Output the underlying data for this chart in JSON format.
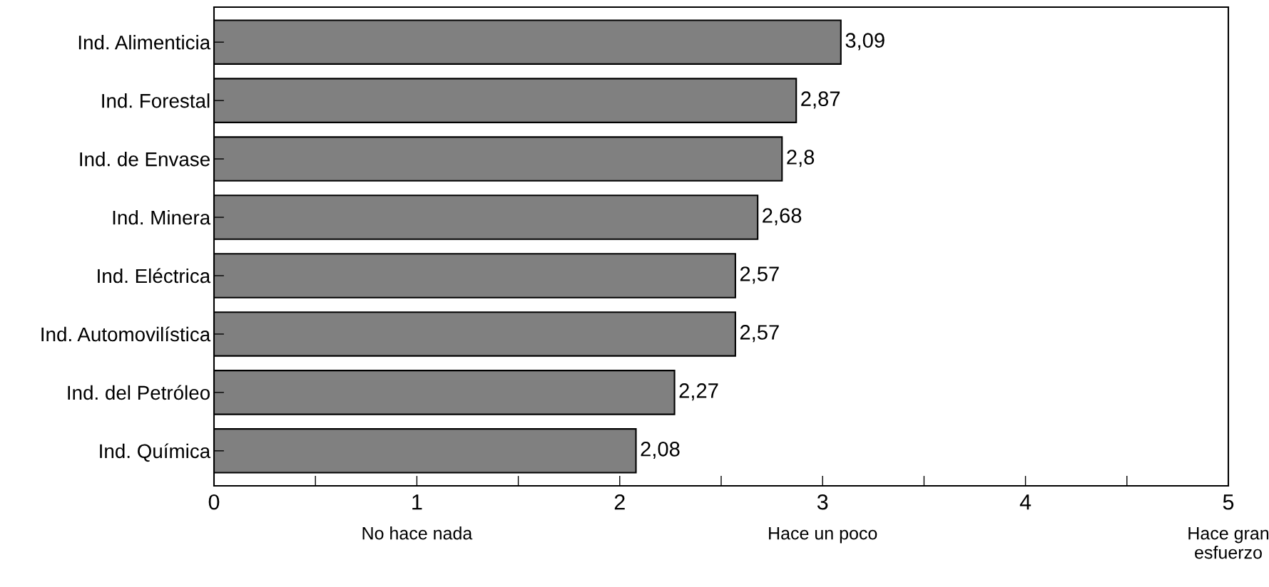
{
  "chart_data": {
    "type": "bar",
    "orientation": "horizontal",
    "categories": [
      "Ind. Alimenticia",
      "Ind. Forestal",
      "Ind. de Envase",
      "Ind. Minera",
      "Ind. Eléctrica",
      "Ind. Automovilística",
      "Ind. del Petróleo",
      "Ind. Química"
    ],
    "values": [
      3.09,
      2.87,
      2.8,
      2.68,
      2.57,
      2.57,
      2.27,
      2.08
    ],
    "color": "#808080",
    "data_labels": true,
    "value_labels": [
      "3,09",
      "2,87",
      "2,8",
      "2,68",
      "2,57",
      "2,57",
      "2,27",
      "2,08"
    ],
    "xlim": [
      0,
      5
    ],
    "xticks": [
      0,
      {
        "value": 0.5,
        "label": null
      },
      1,
      {
        "value": 1.5,
        "label": null
      },
      2,
      {
        "value": 2.5,
        "label": null
      },
      3,
      {
        "value": 3.5,
        "label": null
      },
      4,
      {
        "value": 4.5,
        "label": null
      },
      5
    ],
    "annotations": [
      "No hace nada",
      "Hace un poco",
      "Hace gran\nesfuerzo"
    ],
    "grid": false,
    "legend": false
  }
}
